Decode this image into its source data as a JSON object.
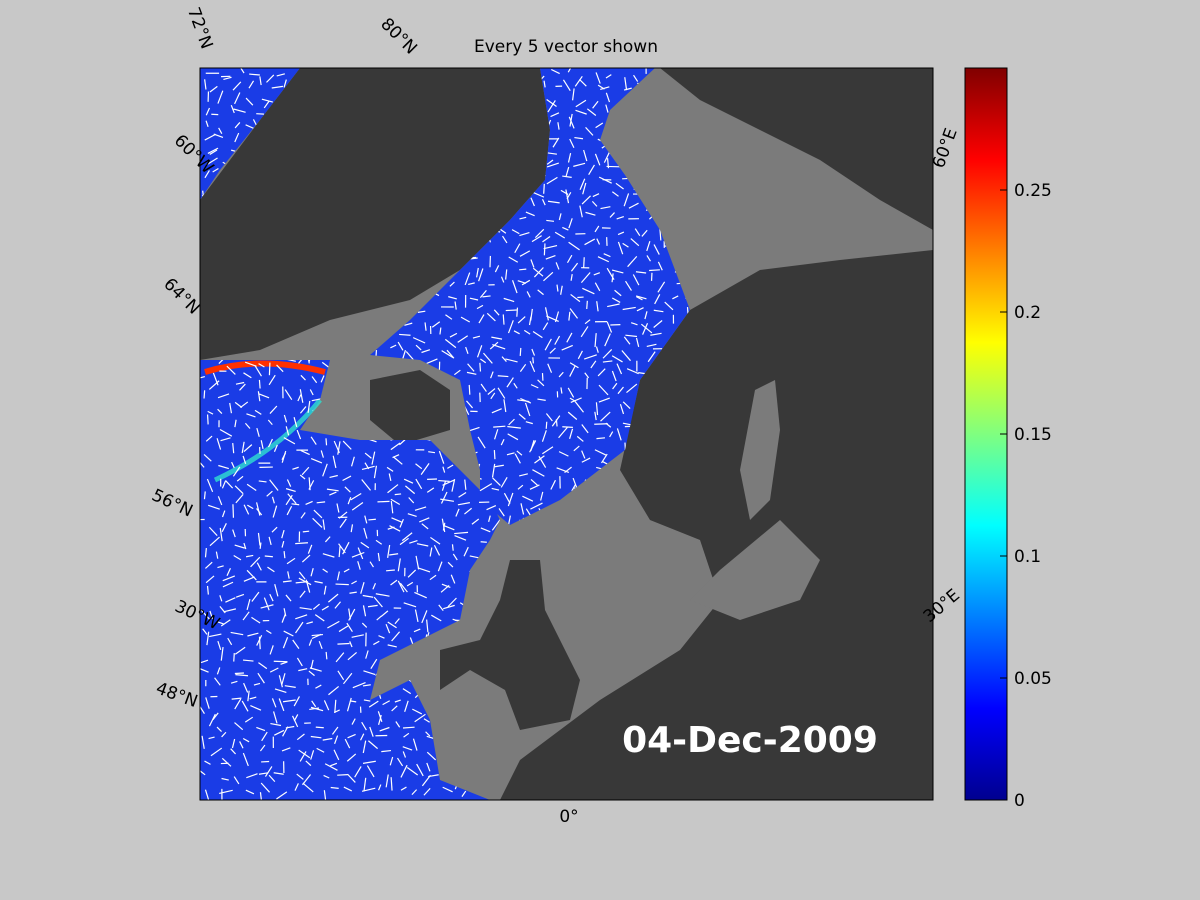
{
  "title": "Every 5 vector shown",
  "date": "04-Dec-2009",
  "graticule_labels": [
    "72°N",
    "80°N",
    "60°W",
    "64°N",
    "56°N",
    "30°W",
    "48°N",
    "0°",
    "30°E",
    "60°E"
  ],
  "colorbar": {
    "lim": [
      0,
      0.3
    ],
    "ticks": [
      0,
      0.05,
      0.1,
      0.15,
      0.2,
      0.25
    ]
  }
}
